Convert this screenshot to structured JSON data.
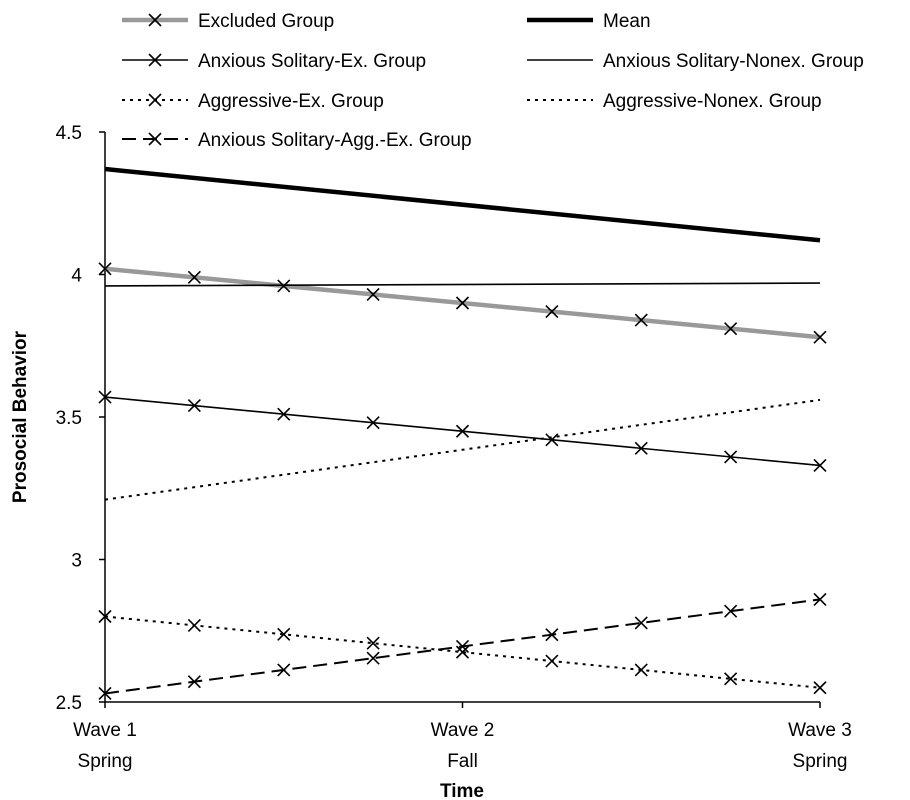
{
  "chart_data": {
    "type": "line",
    "xlabel": "Time",
    "ylabel": "Prosocial Behavior",
    "ylim": [
      2.5,
      4.5
    ],
    "yticks": [
      "2.5",
      "3",
      "3.5",
      "4",
      "4.5"
    ],
    "ytick_values": [
      2.5,
      3,
      3.5,
      4,
      4.5
    ],
    "xlim": [
      1,
      3
    ],
    "xticks": [
      {
        "x": 1,
        "line1": "Wave 1",
        "line2": "Spring"
      },
      {
        "x": 2,
        "line1": "Wave 2",
        "line2": "Fall"
      },
      {
        "x": 3,
        "line1": "Wave 3",
        "line2": "Spring"
      }
    ],
    "legend_position": "top",
    "series": [
      {
        "name": "Excluded Group",
        "color": "#999999",
        "style": "solid-thick",
        "marker": "x",
        "start": 4.02,
        "end": 3.78
      },
      {
        "name": "Mean",
        "color": "#000000",
        "style": "solid-bold",
        "marker": "none",
        "start": 4.37,
        "end": 4.12
      },
      {
        "name": "Anxious Solitary-Ex. Group",
        "color": "#000000",
        "style": "solid",
        "marker": "x",
        "start": 3.57,
        "end": 3.33
      },
      {
        "name": "Anxious Solitary-Nonex. Group",
        "color": "#000000",
        "style": "solid",
        "marker": "none",
        "start": 3.96,
        "end": 3.97
      },
      {
        "name": "Aggressive-Ex. Group",
        "color": "#000000",
        "style": "dotted",
        "marker": "x",
        "start": 2.8,
        "end": 2.55
      },
      {
        "name": "Aggressive-Nonex. Group",
        "color": "#000000",
        "style": "dotted",
        "marker": "none",
        "start": 3.21,
        "end": 3.56
      },
      {
        "name": "Anxious Solitary-Agg.-Ex. Group",
        "color": "#000000",
        "style": "dashed",
        "marker": "x",
        "start": 2.53,
        "end": 2.86
      }
    ]
  }
}
